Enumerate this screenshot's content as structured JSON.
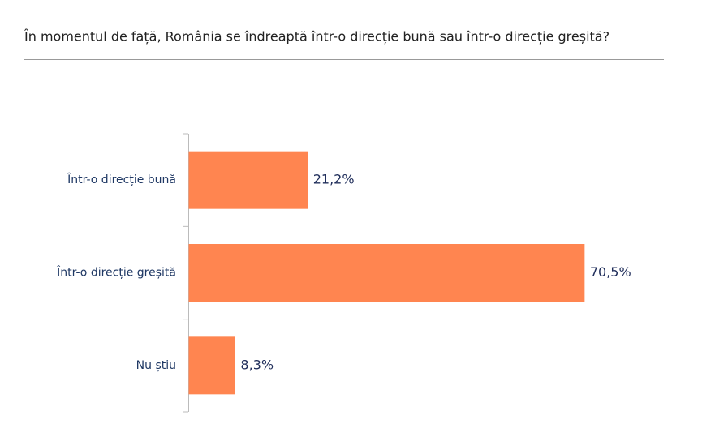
{
  "chart_data": {
    "type": "hbar",
    "title": "În momentul de față, România se îndreaptă într-o direcție bună sau într-o direcție greșită?",
    "categories": [
      "Într-o direcție bună",
      "Într-o direcție greșită",
      "Nu știu"
    ],
    "values": [
      21.2,
      70.5,
      8.3
    ],
    "value_labels": [
      "21,2%",
      "70,5%",
      "8,3%"
    ],
    "color": "#ff8550"
  }
}
